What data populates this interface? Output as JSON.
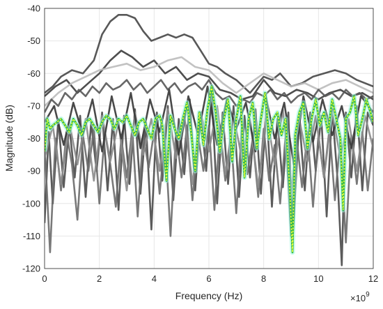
{
  "chart_data": {
    "type": "line",
    "title": "",
    "xlabel": "Frequency (Hz)",
    "ylabel": "Magnitude (dB)",
    "x_exponent_label": "×10",
    "x_exponent_power": "9",
    "xlim": [
      0,
      12
    ],
    "ylim": [
      -120,
      -40
    ],
    "grid": true,
    "legend": "none",
    "x_ticks": [
      "0",
      "2",
      "4",
      "6",
      "8",
      "10",
      "12"
    ],
    "y_ticks": [
      "-40",
      "-50",
      "-60",
      "-70",
      "-80",
      "-90",
      "-100",
      "-110",
      "-120"
    ],
    "colors": {
      "highlight_line": "#1db34a",
      "highlight_dots": "#f0ff3a",
      "highlight_band": "#9ff5dd",
      "background_lines": [
        "#3c3c3c",
        "#555555",
        "#6f6f6f",
        "#8a8a8a",
        "#a5a5a5",
        "#c0c0c0"
      ]
    },
    "series": [
      {
        "role": "upper-envelope-dark",
        "color": "#4a4a4a",
        "x": [
          0,
          0.3,
          0.6,
          1.0,
          1.4,
          1.8,
          2.1,
          2.4,
          2.7,
          3.0,
          3.3,
          3.6,
          3.9,
          4.2,
          4.5,
          4.8,
          5.1,
          5.4,
          5.7,
          6.0,
          6.3,
          6.6,
          7.0,
          7.5,
          8.0,
          8.3,
          8.6,
          9.0,
          9.4,
          9.8,
          10.2,
          10.6,
          11.0,
          11.4,
          12.0
        ],
        "y": [
          -66,
          -64,
          -61,
          -59,
          -60,
          -56,
          -48,
          -44,
          -42,
          -42,
          -43,
          -47,
          -50,
          -49,
          -48,
          -49,
          -48,
          -49,
          -53,
          -57,
          -58,
          -60,
          -62,
          -66,
          -61,
          -62,
          -60,
          -64,
          -63,
          -61,
          -60,
          -59,
          -60,
          -62,
          -64
        ]
      },
      {
        "role": "mid-dark",
        "color": "#3f3f3f",
        "x": [
          0,
          0.4,
          0.8,
          1.2,
          1.6,
          2.0,
          2.4,
          2.8,
          3.2,
          3.6,
          4.0,
          4.4,
          4.8,
          5.2,
          5.6,
          6.0,
          6.4,
          6.8,
          7.2,
          7.6,
          8.0,
          8.4,
          8.8,
          9.2,
          9.6,
          10.0,
          10.4,
          10.8,
          11.2,
          11.6,
          12.0
        ],
        "y": [
          -67,
          -64,
          -62,
          -66,
          -63,
          -60,
          -56,
          -53,
          -55,
          -58,
          -56,
          -60,
          -58,
          -62,
          -60,
          -61,
          -65,
          -66,
          -68,
          -67,
          -62,
          -66,
          -67,
          -65,
          -66,
          -68,
          -66,
          -65,
          -67,
          -66,
          -68
        ]
      },
      {
        "role": "light-gray",
        "color": "#bdbdbd",
        "x": [
          0,
          0.5,
          1.0,
          1.5,
          2.0,
          2.5,
          3.0,
          3.5,
          4.0,
          4.5,
          5.0,
          5.5,
          6.0,
          6.5,
          7.0,
          7.5,
          8.0,
          8.5,
          9.0,
          9.5,
          10.0,
          10.5,
          11.0,
          11.5,
          12.0
        ],
        "y": [
          -70,
          -66,
          -63,
          -61,
          -59,
          -58,
          -57,
          -59,
          -58,
          -56,
          -55,
          -58,
          -59,
          -63,
          -66,
          -63,
          -60,
          -62,
          -64,
          -63,
          -65,
          -63,
          -62,
          -64,
          -66
        ]
      },
      {
        "role": "band-top-noise",
        "color": "#5a5a5a",
        "x": [
          0,
          0.25,
          0.5,
          0.75,
          1.0,
          1.25,
          1.5,
          1.75,
          2.0,
          2.25,
          2.5,
          2.75,
          3.0,
          3.25,
          3.5,
          3.75,
          4.0,
          4.25,
          4.5,
          4.75,
          5.0,
          5.25,
          5.5,
          5.75,
          6.0,
          6.25,
          6.5,
          6.75,
          7.0,
          7.25,
          7.5,
          7.75,
          8.0,
          8.25,
          8.5,
          8.75,
          9.0,
          9.25,
          9.5,
          9.75,
          10.0,
          10.25,
          10.5,
          10.75,
          11.0,
          11.25,
          11.5,
          11.75,
          12.0
        ],
        "y": [
          -72,
          -68,
          -70,
          -66,
          -68,
          -65,
          -67,
          -64,
          -66,
          -63,
          -65,
          -64,
          -62,
          -65,
          -63,
          -66,
          -64,
          -62,
          -65,
          -63,
          -66,
          -64,
          -63,
          -65,
          -62,
          -66,
          -68,
          -67,
          -70,
          -68,
          -69,
          -66,
          -67,
          -65,
          -68,
          -66,
          -69,
          -67,
          -66,
          -68,
          -65,
          -67,
          -66,
          -68,
          -65,
          -67,
          -66,
          -68,
          -67
        ]
      },
      {
        "role": "deep-notch-noise-1",
        "color": "#4d4d4d",
        "x": [
          0,
          0.15,
          0.3,
          0.5,
          0.7,
          0.9,
          1.1,
          1.3,
          1.5,
          1.7,
          1.9,
          2.1,
          2.3,
          2.5,
          2.7,
          2.9,
          3.1,
          3.3,
          3.5,
          3.7,
          3.9,
          4.1,
          4.3,
          4.5,
          4.7,
          4.9,
          5.1,
          5.3,
          5.5,
          5.7,
          5.9,
          6.1,
          6.3,
          6.5,
          6.7,
          6.9,
          7.1,
          7.3,
          7.5,
          7.7,
          7.9,
          8.1,
          8.3,
          8.5,
          8.7,
          8.9,
          9.05,
          9.3,
          9.5,
          9.7,
          9.9,
          10.1,
          10.3,
          10.5,
          10.7,
          10.85,
          11.0,
          11.2,
          11.4,
          11.6,
          11.8,
          12.0
        ],
        "y": [
          -106,
          -78,
          -100,
          -74,
          -95,
          -76,
          -92,
          -73,
          -98,
          -75,
          -90,
          -72,
          -96,
          -74,
          -102,
          -73,
          -94,
          -71,
          -97,
          -75,
          -108,
          -72,
          -93,
          -70,
          -99,
          -74,
          -91,
          -68,
          -96,
          -72,
          -90,
          -66,
          -100,
          -72,
          -94,
          -70,
          -98,
          -73,
          -92,
          -71,
          -97,
          -70,
          -101,
          -74,
          -95,
          -72,
          -112,
          -74,
          -96,
          -72,
          -90,
          -73,
          -104,
          -71,
          -93,
          -119,
          -72,
          -92,
          -70,
          -96,
          -72,
          -76
        ]
      },
      {
        "role": "deep-notch-noise-2",
        "color": "#6e6e6e",
        "x": [
          0,
          0.2,
          0.4,
          0.6,
          0.8,
          1.0,
          1.2,
          1.4,
          1.6,
          1.8,
          2.0,
          2.2,
          2.4,
          2.6,
          2.8,
          3.0,
          3.2,
          3.4,
          3.6,
          3.8,
          4.0,
          4.2,
          4.4,
          4.6,
          4.8,
          5.0,
          5.2,
          5.4,
          5.6,
          5.8,
          6.0,
          6.2,
          6.4,
          6.6,
          6.8,
          7.0,
          7.2,
          7.4,
          7.6,
          7.8,
          8.0,
          8.2,
          8.4,
          8.6,
          8.8,
          9.0,
          9.2,
          9.4,
          9.6,
          9.8,
          10.0,
          10.2,
          10.4,
          10.6,
          10.8,
          11.0,
          11.2,
          11.4,
          11.6,
          11.8,
          12.0
        ],
        "y": [
          -82,
          -115,
          -80,
          -96,
          -78,
          -88,
          -105,
          -79,
          -90,
          -77,
          -100,
          -78,
          -88,
          -101,
          -80,
          -92,
          -77,
          -104,
          -79,
          -89,
          -78,
          -97,
          -80,
          -110,
          -78,
          -92,
          -76,
          -99,
          -79,
          -90,
          -76,
          -102,
          -78,
          -93,
          -79,
          -103,
          -77,
          -91,
          -80,
          -98,
          -77,
          -93,
          -82,
          -100,
          -79,
          -110,
          -80,
          -95,
          -78,
          -101,
          -79,
          -92,
          -77,
          -99,
          -80,
          -112,
          -79,
          -94,
          -78,
          -96,
          -80
        ]
      },
      {
        "role": "mid-noise-3",
        "color": "#8c8c8c",
        "x": [
          0,
          0.3,
          0.6,
          0.9,
          1.2,
          1.5,
          1.8,
          2.1,
          2.4,
          2.7,
          3.0,
          3.3,
          3.6,
          3.9,
          4.2,
          4.5,
          4.8,
          5.1,
          5.4,
          5.7,
          6.0,
          6.3,
          6.6,
          6.9,
          7.2,
          7.5,
          7.8,
          8.1,
          8.4,
          8.7,
          9.0,
          9.3,
          9.6,
          9.9,
          10.2,
          10.5,
          10.8,
          11.1,
          11.4,
          11.7,
          12.0
        ],
        "y": [
          -86,
          -76,
          -94,
          -75,
          -88,
          -74,
          -93,
          -73,
          -87,
          -75,
          -96,
          -72,
          -85,
          -74,
          -90,
          -71,
          -86,
          -73,
          -94,
          -72,
          -84,
          -70,
          -91,
          -73,
          -86,
          -74,
          -95,
          -72,
          -88,
          -71,
          -97,
          -74,
          -87,
          -73,
          -92,
          -72,
          -86,
          -74,
          -90,
          -73,
          -83
        ]
      },
      {
        "role": "mid-noise-4",
        "color": "#3a3a3a",
        "x": [
          0,
          0.35,
          0.7,
          1.05,
          1.4,
          1.75,
          2.1,
          2.45,
          2.8,
          3.15,
          3.5,
          3.85,
          4.2,
          4.55,
          4.9,
          5.25,
          5.6,
          5.95,
          6.3,
          6.65,
          7.0,
          7.35,
          7.7,
          8.05,
          8.4,
          8.75,
          9.1,
          9.45,
          9.8,
          10.15,
          10.5,
          10.85,
          11.2,
          11.55,
          12.0
        ],
        "y": [
          -75,
          -70,
          -82,
          -69,
          -79,
          -68,
          -84,
          -67,
          -80,
          -66,
          -83,
          -68,
          -78,
          -65,
          -85,
          -67,
          -79,
          -64,
          -82,
          -68,
          -77,
          -69,
          -84,
          -66,
          -80,
          -69,
          -88,
          -67,
          -81,
          -68,
          -79,
          -70,
          -83,
          -67,
          -72
        ]
      },
      {
        "role": "highlighted-mean",
        "highlight": true,
        "color": "#1db34a",
        "x": [
          0,
          0.1,
          0.2,
          0.3,
          0.45,
          0.6,
          0.75,
          0.9,
          1.05,
          1.2,
          1.35,
          1.5,
          1.65,
          1.8,
          1.95,
          2.1,
          2.25,
          2.4,
          2.55,
          2.7,
          2.85,
          3.0,
          3.15,
          3.3,
          3.45,
          3.6,
          3.75,
          3.9,
          4.05,
          4.2,
          4.3,
          4.45,
          4.6,
          4.75,
          4.9,
          5.05,
          5.2,
          5.35,
          5.5,
          5.65,
          5.8,
          5.95,
          6.1,
          6.25,
          6.4,
          6.55,
          6.7,
          6.85,
          7.0,
          7.15,
          7.3,
          7.45,
          7.6,
          7.75,
          7.9,
          8.05,
          8.2,
          8.35,
          8.5,
          8.65,
          8.8,
          8.95,
          9.05,
          9.15,
          9.3,
          9.45,
          9.6,
          9.75,
          9.9,
          10.05,
          10.2,
          10.35,
          10.5,
          10.65,
          10.8,
          10.9,
          11.0,
          11.15,
          11.3,
          11.45,
          11.6,
          11.75,
          11.9,
          12.0
        ],
        "y": [
          -84,
          -74,
          -77,
          -76,
          -75,
          -74,
          -76,
          -78,
          -74,
          -76,
          -79,
          -75,
          -74,
          -76,
          -78,
          -75,
          -73,
          -74,
          -77,
          -74,
          -75,
          -73,
          -76,
          -79,
          -75,
          -74,
          -77,
          -80,
          -74,
          -73,
          -76,
          -93,
          -73,
          -77,
          -80,
          -74,
          -69,
          -78,
          -90,
          -72,
          -82,
          -71,
          -64,
          -72,
          -84,
          -74,
          -68,
          -87,
          -74,
          -67,
          -92,
          -74,
          -69,
          -83,
          -74,
          -66,
          -80,
          -74,
          -72,
          -79,
          -74,
          -95,
          -115,
          -79,
          -72,
          -69,
          -83,
          -74,
          -68,
          -76,
          -72,
          -78,
          -68,
          -74,
          -80,
          -102,
          -74,
          -72,
          -67,
          -79,
          -74,
          -68,
          -72,
          -75
        ]
      }
    ]
  }
}
